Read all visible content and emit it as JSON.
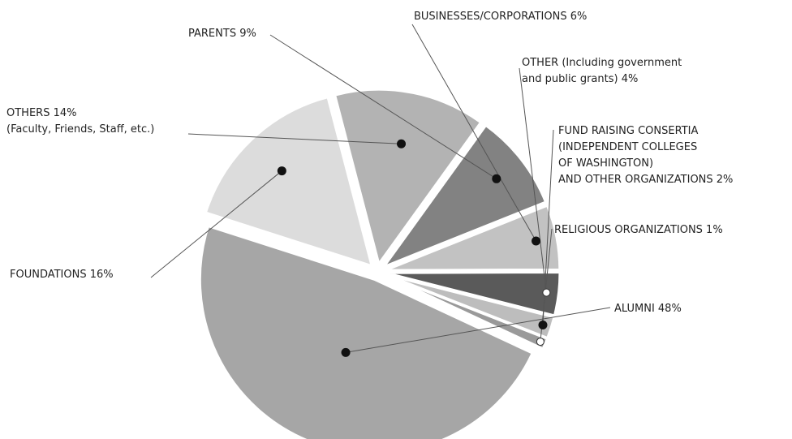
{
  "chart_data": {
    "type": "pie",
    "title": "",
    "slices": [
      {
        "label": "ALUMNI 48%",
        "value": 48,
        "color": "#a6a6a6",
        "marker": "dark"
      },
      {
        "label": "FOUNDATIONS 16%",
        "value": 16,
        "color": "#dcdcdc",
        "marker": "dark"
      },
      {
        "label": "OTHERS 14% (Faculty, Friends, Staff, etc.)",
        "lines": [
          "OTHERS 14%",
          "(Faculty, Friends, Staff, etc.)"
        ],
        "value": 14,
        "color": "#b3b3b3",
        "marker": "dark"
      },
      {
        "label": "PARENTS 9%",
        "value": 9,
        "color": "#828282",
        "marker": "dark"
      },
      {
        "label": "BUSINESSES/CORPORATIONS 6%",
        "value": 6,
        "color": "#c2c2c2",
        "marker": "dark"
      },
      {
        "label": "OTHER (Including government and public grants) 4%",
        "lines": [
          "OTHER (Including government",
          "and public grants) 4%"
        ],
        "value": 4,
        "color": "#5a5a5a",
        "marker": "light"
      },
      {
        "label": "FUND RAISING CONSERTIA (INDEPENDENT COLLEGES OF WASHINGTON) AND OTHER ORGANIZATIONS 2%",
        "lines": [
          "FUND RAISING CONSERTIA",
          "(INDEPENDENT COLLEGES",
          "OF WASHINGTON)",
          "AND OTHER ORGANIZATIONS 2%"
        ],
        "value": 2,
        "color": "#bdbdbd",
        "marker": "dark"
      },
      {
        "label": "RELIGIOUS ORGANIZATIONS 1%",
        "value": 1,
        "color": "#9a9a9a",
        "marker": "light"
      }
    ]
  }
}
